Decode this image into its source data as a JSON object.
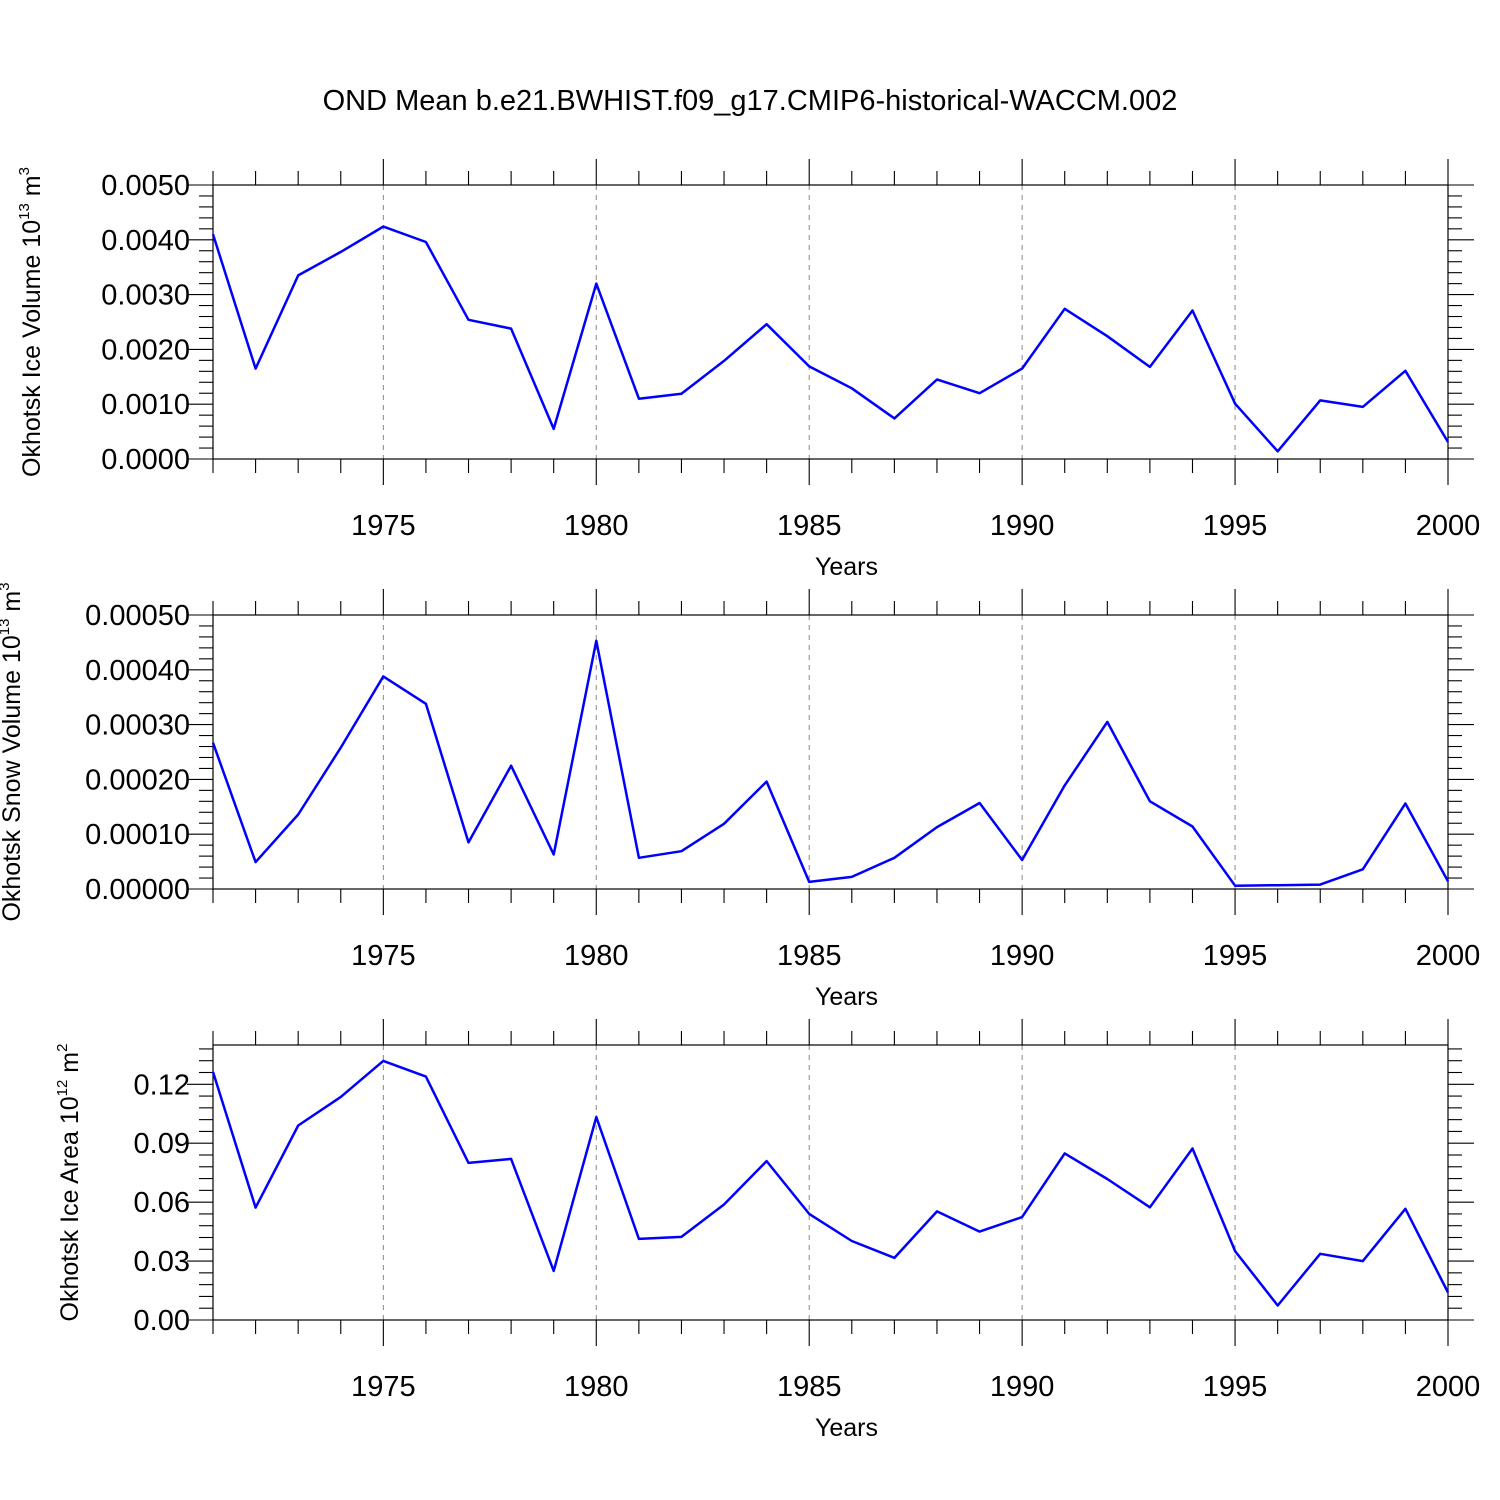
{
  "chart_data": [
    {
      "type": "line",
      "title": "OND Mean b.e21.BWHIST.f09_g17.CMIP6-historical-WACCM.002",
      "ylabel": "Okhotsk Ice Volume 10",
      "ylabel_exp": "13",
      "ylabel_unit": " m",
      "ylabel_unit_exp": "3",
      "xlabel": "Years",
      "xlim": [
        1971,
        2000
      ],
      "ylim": [
        0,
        0.005
      ],
      "x_ticks": [
        1975,
        1980,
        1985,
        1990,
        1995,
        2000
      ],
      "x_tick_labels": [
        "1975",
        "1980",
        "1985",
        "1990",
        "1995",
        "2000"
      ],
      "y_ticks": [
        0,
        0.001,
        0.002,
        0.003,
        0.004,
        0.005
      ],
      "y_tick_labels": [
        "0.0000",
        "0.0010",
        "0.0020",
        "0.0030",
        "0.0040",
        "0.0050"
      ],
      "color": "#0000ff",
      "x": [
        1971,
        1972,
        1973,
        1974,
        1975,
        1976,
        1977,
        1978,
        1979,
        1980,
        1981,
        1982,
        1983,
        1984,
        1985,
        1986,
        1987,
        1988,
        1989,
        1990,
        1991,
        1992,
        1993,
        1994,
        1995,
        1996,
        1997,
        1998,
        1999,
        2000
      ],
      "values": [
        0.0041,
        0.00165,
        0.00335,
        0.00378,
        0.00424,
        0.00396,
        0.00254,
        0.00238,
        0.00055,
        0.0032,
        0.0011,
        0.00119,
        0.00179,
        0.00246,
        0.00169,
        0.00129,
        0.00074,
        0.00145,
        0.0012,
        0.00165,
        0.00274,
        0.00224,
        0.00168,
        0.00271,
        0.00101,
        0.00014,
        0.00107,
        0.00095,
        0.00161,
        0.00031
      ]
    },
    {
      "type": "line",
      "ylabel": "Okhotsk Snow Volume 10",
      "ylabel_exp": "13",
      "ylabel_unit": " m",
      "ylabel_unit_exp": "3",
      "xlabel": "Years",
      "xlim": [
        1971,
        2000
      ],
      "ylim": [
        0,
        0.0005
      ],
      "x_ticks": [
        1975,
        1980,
        1985,
        1990,
        1995,
        2000
      ],
      "x_tick_labels": [
        "1975",
        "1980",
        "1985",
        "1990",
        "1995",
        "2000"
      ],
      "y_ticks": [
        0,
        0.0001,
        0.0002,
        0.0003,
        0.0004,
        0.0005
      ],
      "y_tick_labels": [
        "0.00000",
        "0.00010",
        "0.00020",
        "0.00030",
        "0.00040",
        "0.00050"
      ],
      "color": "#0000ff",
      "x": [
        1971,
        1972,
        1973,
        1974,
        1975,
        1976,
        1977,
        1978,
        1979,
        1980,
        1981,
        1982,
        1983,
        1984,
        1985,
        1986,
        1987,
        1988,
        1989,
        1990,
        1991,
        1992,
        1993,
        1994,
        1995,
        1996,
        1997,
        1998,
        1999,
        2000
      ],
      "values": [
        0.000267,
        4.9e-05,
        0.000136,
        0.000258,
        0.000388,
        0.000338,
        8.5e-05,
        0.000225,
        6.3e-05,
        0.000453,
        5.7e-05,
        6.9e-05,
        0.000119,
        0.000196,
        1.3e-05,
        2.2e-05,
        5.7e-05,
        0.000113,
        0.000157,
        5.3e-05,
        0.000189,
        0.000305,
        0.00016,
        0.000114,
        6e-06,
        7e-06,
        8e-06,
        3.6e-05,
        0.000156,
        1.4e-05
      ]
    },
    {
      "type": "line",
      "ylabel": "Okhotsk Ice Area 10",
      "ylabel_exp": "12",
      "ylabel_unit": " m",
      "ylabel_unit_exp": "2",
      "xlabel": "Years",
      "xlim": [
        1971,
        2000
      ],
      "ylim": [
        0,
        0.14
      ],
      "x_ticks": [
        1975,
        1980,
        1985,
        1990,
        1995,
        2000
      ],
      "x_tick_labels": [
        "1975",
        "1980",
        "1985",
        "1990",
        "1995",
        "2000"
      ],
      "y_ticks": [
        0,
        0.03,
        0.06,
        0.09,
        0.12
      ],
      "y_tick_labels": [
        "0.00",
        "0.03",
        "0.06",
        "0.09",
        "0.12"
      ],
      "color": "#0000ff",
      "x": [
        1971,
        1972,
        1973,
        1974,
        1975,
        1976,
        1977,
        1978,
        1979,
        1980,
        1981,
        1982,
        1983,
        1984,
        1985,
        1986,
        1987,
        1988,
        1989,
        1990,
        1991,
        1992,
        1993,
        1994,
        1995,
        1996,
        1997,
        1998,
        1999,
        2000
      ],
      "values": [
        0.1263,
        0.0572,
        0.099,
        0.1136,
        0.1319,
        0.1239,
        0.08,
        0.082,
        0.025,
        0.1033,
        0.0413,
        0.0423,
        0.0588,
        0.0809,
        0.054,
        0.0402,
        0.0316,
        0.0553,
        0.045,
        0.0524,
        0.0848,
        0.0718,
        0.0574,
        0.0873,
        0.0351,
        0.0074,
        0.0337,
        0.03,
        0.0566,
        0.014
      ]
    }
  ]
}
